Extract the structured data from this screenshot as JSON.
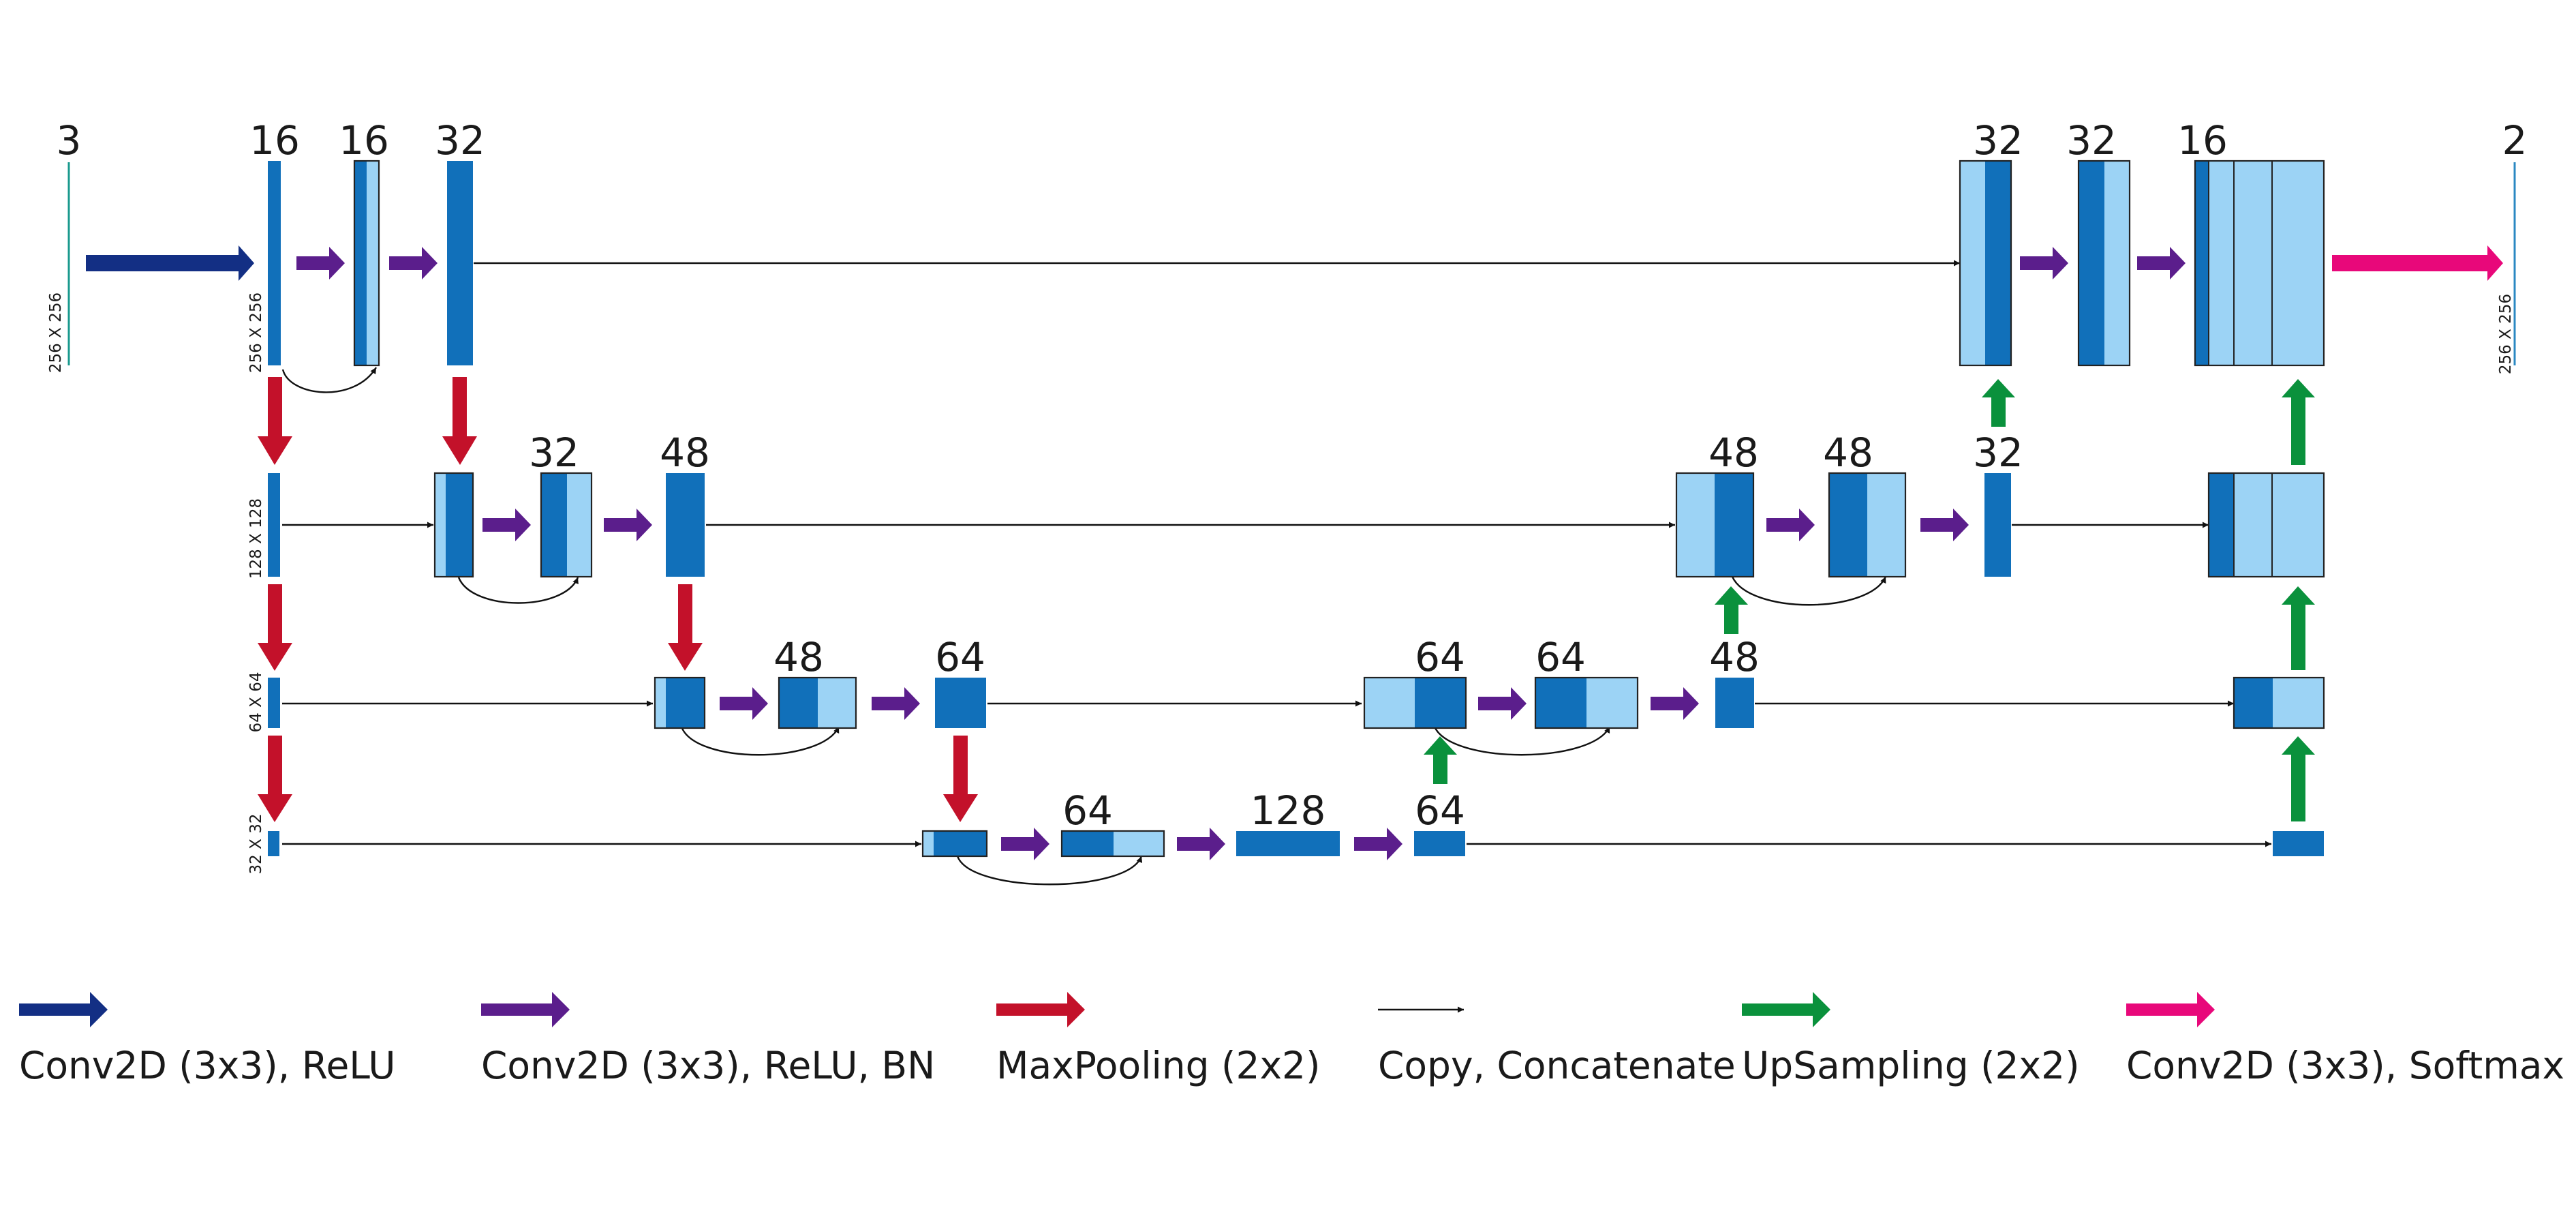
{
  "channels": {
    "input": "3",
    "enc1a": "16",
    "enc1b": "16",
    "enc1c": "32",
    "enc2a": "32",
    "enc2b": "48",
    "enc3a": "48",
    "enc3b": "64",
    "bot1": "64",
    "bot2": "128",
    "bot3": "64",
    "dec3a": "64",
    "dec3b": "64",
    "dec3c": "48",
    "dec2a": "48",
    "dec2b": "48",
    "dec2c": "32",
    "dec1a": "32",
    "dec1b": "32",
    "dec1c": "16",
    "output": "2"
  },
  "dims": {
    "input": "256 X 256",
    "level1": "256 X 256",
    "level2": "128 X 128",
    "level3": "64 X 64",
    "level4": "32 X 32",
    "output": "256 X 256"
  },
  "legend": [
    {
      "label": "Conv2D (3x3), ReLU",
      "color": "#132f84"
    },
    {
      "label": "Conv2D (3x3), ReLU, BN",
      "color": "#5b1e8c"
    },
    {
      "label": "MaxPooling (2x2)",
      "color": "#c3112a"
    },
    {
      "label": "Copy, Concatenate",
      "color": "#111111"
    },
    {
      "label": "UpSampling (2x2)",
      "color": "#0a913c"
    },
    {
      "label": "Conv2D (3x3), Softmax",
      "color": "#e8087a"
    }
  ]
}
